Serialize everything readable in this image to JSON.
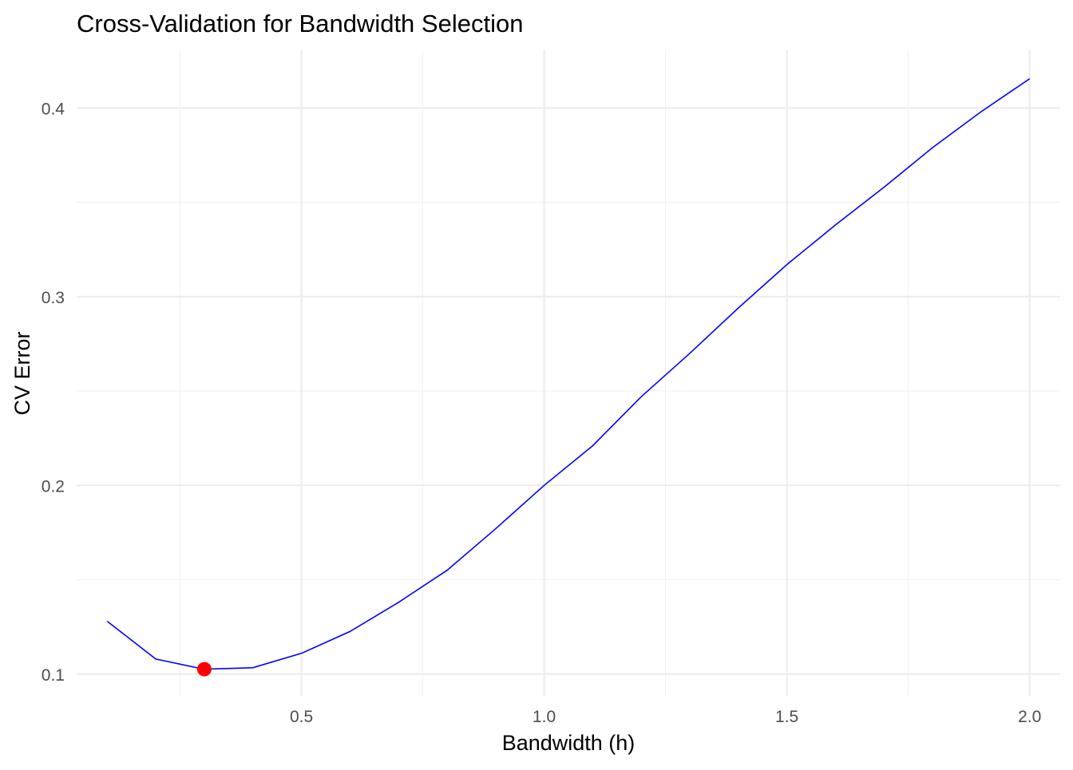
{
  "chart_data": {
    "type": "line",
    "title": "Cross-Validation for Bandwidth Selection",
    "xlabel": "Bandwidth (h)",
    "ylabel": "CV Error",
    "xlim": [
      0.037,
      2.063
    ],
    "ylim": [
      0.0885,
      0.431
    ],
    "x_ticks": [
      0.5,
      1.0,
      1.5,
      2.0
    ],
    "x_tick_labels": [
      "0.5",
      "1.0",
      "1.5",
      "2.0"
    ],
    "y_ticks": [
      0.1,
      0.2,
      0.3,
      0.4
    ],
    "y_tick_labels": [
      "0.1",
      "0.2",
      "0.3",
      "0.4"
    ],
    "grid": true,
    "series": [
      {
        "color": "#0000ff",
        "x": [
          0.1,
          0.2,
          0.3,
          0.4,
          0.5,
          0.6,
          0.7,
          0.8,
          0.9,
          1.0,
          1.1,
          1.2,
          1.3,
          1.4,
          1.5,
          1.6,
          1.7,
          1.8,
          1.9,
          2.0
        ],
        "y": [
          0.128,
          0.108,
          0.1026,
          0.1034,
          0.111,
          0.1226,
          0.138,
          0.155,
          0.177,
          0.2,
          0.221,
          0.247,
          0.27,
          0.294,
          0.317,
          0.338,
          0.358,
          0.379,
          0.398,
          0.4155
        ]
      }
    ],
    "highlight_point": {
      "x": 0.3,
      "y": 0.1026,
      "color": "#ff0000"
    }
  }
}
